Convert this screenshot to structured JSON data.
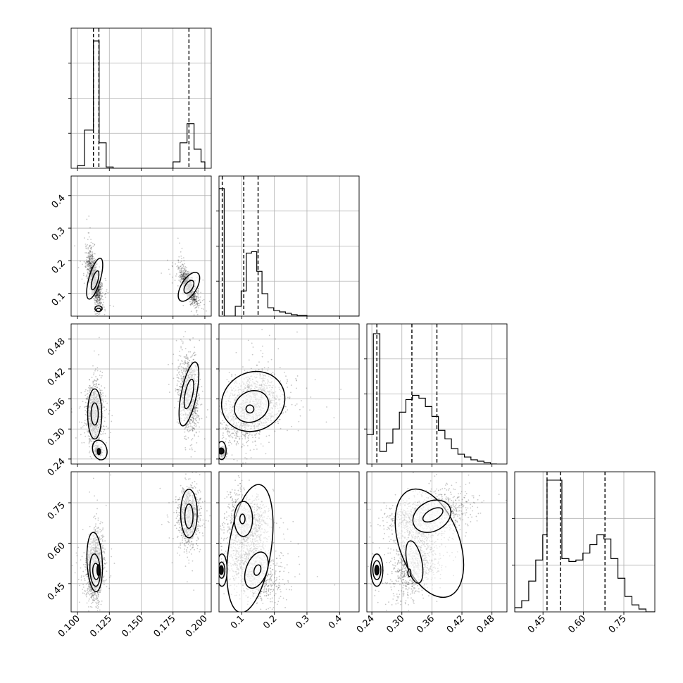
{
  "chart_data": {
    "type": "corner",
    "title": "",
    "grid": true,
    "quantile_lines": "dashed",
    "parameters": [
      {
        "range": [
          0.095,
          0.205
        ],
        "ticks": [
          0.1,
          0.125,
          0.15,
          0.175,
          0.2
        ],
        "tick_labels": [
          "0.100",
          "0.125",
          "0.150",
          "0.175",
          "0.200"
        ],
        "quantiles": [
          0.1125,
          0.1168,
          0.1875
        ],
        "hist_ymax": 1.1,
        "hist": {
          "edges": [
            0.1,
            0.1055,
            0.111,
            0.1125,
            0.117,
            0.1225,
            0.128,
            0.175,
            0.1805,
            0.186,
            0.1915,
            0.197,
            0.2
          ],
          "values": [
            0.02,
            0.3,
            0.3,
            1.0,
            0.2,
            0.01,
            0.0,
            0.05,
            0.2,
            0.35,
            0.15,
            0.05
          ]
        }
      },
      {
        "range": [
          0.03,
          0.46
        ],
        "ticks": [
          0.1,
          0.2,
          0.3,
          0.4
        ],
        "tick_labels": [
          "0.1",
          "0.2",
          "0.3",
          "0.4"
        ],
        "quantiles": [
          0.04,
          0.106,
          0.15
        ],
        "hist_ymax": 1.0,
        "hist": {
          "edges": [
            0.03,
            0.046,
            0.062,
            0.08,
            0.098,
            0.114,
            0.13,
            0.146,
            0.162,
            0.18,
            0.198,
            0.216,
            0.234,
            0.252,
            0.27,
            0.3,
            0.46
          ],
          "values": [
            0.91,
            0.0,
            0.0,
            0.07,
            0.18,
            0.45,
            0.46,
            0.32,
            0.16,
            0.06,
            0.04,
            0.03,
            0.02,
            0.01,
            0.005,
            0.0
          ]
        }
      },
      {
        "range": [
          0.23,
          0.51
        ],
        "ticks": [
          0.24,
          0.3,
          0.36,
          0.42,
          0.48
        ],
        "tick_labels": [
          "0.24",
          "0.30",
          "0.36",
          "0.42",
          "0.48"
        ],
        "quantiles": [
          0.25,
          0.32,
          0.37
        ],
        "hist_ymax": 1.0,
        "hist": {
          "edges": [
            0.23,
            0.243,
            0.256,
            0.269,
            0.282,
            0.295,
            0.308,
            0.321,
            0.334,
            0.347,
            0.36,
            0.373,
            0.386,
            0.399,
            0.412,
            0.425,
            0.438,
            0.451,
            0.464,
            0.477,
            0.49
          ],
          "values": [
            0.21,
            0.93,
            0.09,
            0.15,
            0.25,
            0.37,
            0.46,
            0.49,
            0.47,
            0.41,
            0.34,
            0.24,
            0.18,
            0.11,
            0.07,
            0.05,
            0.03,
            0.02,
            0.01,
            0.0
          ]
        }
      },
      {
        "range": [
          0.345,
          0.865
        ],
        "ticks": [
          0.45,
          0.6,
          0.75
        ],
        "tick_labels": [
          "0.45",
          "0.60",
          "0.75"
        ],
        "quantiles": [
          0.465,
          0.515,
          0.68
        ],
        "hist_ymax": 1.0,
        "hist": {
          "edges": [
            0.345,
            0.371,
            0.397,
            0.423,
            0.449,
            0.465,
            0.52,
            0.546,
            0.572,
            0.598,
            0.624,
            0.65,
            0.676,
            0.702,
            0.728,
            0.754,
            0.78,
            0.806,
            0.832,
            0.865
          ],
          "values": [
            0.03,
            0.08,
            0.22,
            0.37,
            0.55,
            0.94,
            0.38,
            0.36,
            0.37,
            0.42,
            0.48,
            0.55,
            0.52,
            0.38,
            0.24,
            0.11,
            0.05,
            0.02,
            0.0
          ]
        }
      }
    ],
    "scatter": [
      {
        "row": 1,
        "col": 0,
        "clusters": [
          {
            "cx": 0.1135,
            "cy": 0.14,
            "sx": 0.0028,
            "sy": 0.042,
            "rho": -0.72,
            "n": 1200
          },
          {
            "cx": 0.1875,
            "cy": 0.12,
            "sx": 0.0038,
            "sy": 0.03,
            "rho": -0.8,
            "n": 900
          }
        ],
        "contours": [
          {
            "cx": 0.1135,
            "cy": 0.145,
            "rx": 0.0045,
            "ry": 0.065,
            "tilt": -0.28,
            "filled": false
          },
          {
            "cx": 0.1138,
            "cy": 0.14,
            "rx": 0.0022,
            "ry": 0.03,
            "tilt": -0.28,
            "filled": false
          },
          {
            "cx": 0.1875,
            "cy": 0.12,
            "rx": 0.006,
            "ry": 0.05,
            "tilt": -0.55,
            "filled": false
          },
          {
            "cx": 0.1875,
            "cy": 0.12,
            "rx": 0.003,
            "ry": 0.022,
            "tilt": -0.55,
            "filled": false
          },
          {
            "cx": 0.1165,
            "cy": 0.053,
            "rx": 0.0028,
            "ry": 0.009,
            "tilt": 0,
            "filled": false
          },
          {
            "cx": 0.1165,
            "cy": 0.049,
            "rx": 0.0018,
            "ry": 0.005,
            "tilt": 0,
            "filled": false
          }
        ]
      },
      {
        "row": 2,
        "col": 0,
        "clusters": [
          {
            "cx": 0.1135,
            "cy": 0.33,
            "sx": 0.003,
            "sy": 0.028,
            "rho": 0.0,
            "n": 1100
          },
          {
            "cx": 0.1875,
            "cy": 0.37,
            "sx": 0.0038,
            "sy": 0.038,
            "rho": -0.2,
            "n": 1000
          },
          {
            "cx": 0.1165,
            "cy": 0.255,
            "sx": 0.0015,
            "sy": 0.004,
            "rho": 0.0,
            "n": 220
          }
        ],
        "contours": [
          {
            "cx": 0.1135,
            "cy": 0.33,
            "rx": 0.0055,
            "ry": 0.05,
            "tilt": 0,
            "filled": false
          },
          {
            "cx": 0.1135,
            "cy": 0.33,
            "rx": 0.0028,
            "ry": 0.022,
            "tilt": 0,
            "filled": false
          },
          {
            "cx": 0.1875,
            "cy": 0.37,
            "rx": 0.006,
            "ry": 0.065,
            "tilt": -0.2,
            "filled": false
          },
          {
            "cx": 0.1875,
            "cy": 0.37,
            "rx": 0.003,
            "ry": 0.03,
            "tilt": -0.2,
            "filled": false
          },
          {
            "cx": 0.1175,
            "cy": 0.258,
            "rx": 0.0055,
            "ry": 0.02,
            "tilt": 0.3,
            "filled": false
          },
          {
            "cx": 0.1168,
            "cy": 0.255,
            "rx": 0.0012,
            "ry": 0.006,
            "tilt": 0,
            "filled": true
          }
        ]
      },
      {
        "row": 2,
        "col": 1,
        "clusters": [
          {
            "cx": 0.13,
            "cy": 0.345,
            "sx": 0.045,
            "sy": 0.032,
            "rho": 0.35,
            "n": 1600
          },
          {
            "cx": 0.04,
            "cy": 0.255,
            "sx": 0.004,
            "sy": 0.004,
            "rho": 0.0,
            "n": 300
          }
        ],
        "contours": [
          {
            "cx": 0.135,
            "cy": 0.355,
            "rx": 0.1,
            "ry": 0.058,
            "tilt": 0.55,
            "filled": false
          },
          {
            "cx": 0.13,
            "cy": 0.345,
            "rx": 0.055,
            "ry": 0.03,
            "tilt": 0.55,
            "filled": false
          },
          {
            "cx": 0.125,
            "cy": 0.34,
            "rx": 0.012,
            "ry": 0.008,
            "tilt": 0.5,
            "filled": false
          },
          {
            "cx": 0.038,
            "cy": 0.257,
            "rx": 0.014,
            "ry": 0.018,
            "tilt": 0,
            "filled": false
          },
          {
            "cx": 0.037,
            "cy": 0.256,
            "rx": 0.008,
            "ry": 0.006,
            "tilt": 0,
            "filled": true
          }
        ]
      },
      {
        "row": 3,
        "col": 0,
        "clusters": [
          {
            "cx": 0.1135,
            "cy": 0.51,
            "sx": 0.003,
            "sy": 0.06,
            "rho": 0.1,
            "n": 1300
          },
          {
            "cx": 0.1875,
            "cy": 0.7,
            "sx": 0.004,
            "sy": 0.05,
            "rho": 0.0,
            "n": 1000
          }
        ],
        "contours": [
          {
            "cx": 0.1135,
            "cy": 0.53,
            "rx": 0.006,
            "ry": 0.11,
            "tilt": 0.05,
            "filled": false
          },
          {
            "cx": 0.1138,
            "cy": 0.5,
            "rx": 0.004,
            "ry": 0.06,
            "tilt": 0.05,
            "filled": false
          },
          {
            "cx": 0.1145,
            "cy": 0.495,
            "rx": 0.0025,
            "ry": 0.03,
            "tilt": 0.05,
            "filled": false
          },
          {
            "cx": 0.1165,
            "cy": 0.5,
            "rx": 0.0012,
            "ry": 0.02,
            "tilt": 0,
            "filled": true
          },
          {
            "cx": 0.1875,
            "cy": 0.71,
            "rx": 0.0065,
            "ry": 0.09,
            "tilt": 0,
            "filled": false
          },
          {
            "cx": 0.1875,
            "cy": 0.7,
            "rx": 0.0032,
            "ry": 0.045,
            "tilt": 0,
            "filled": false
          }
        ]
      },
      {
        "row": 3,
        "col": 1,
        "clusters": [
          {
            "cx": 0.115,
            "cy": 0.68,
            "sx": 0.03,
            "sy": 0.055,
            "rho": 0.0,
            "n": 900
          },
          {
            "cx": 0.14,
            "cy": 0.5,
            "sx": 0.04,
            "sy": 0.06,
            "rho": -0.4,
            "n": 1000
          },
          {
            "cx": 0.04,
            "cy": 0.5,
            "sx": 0.004,
            "sy": 0.012,
            "rho": 0.0,
            "n": 260
          }
        ],
        "contours": [
          {
            "cx": 0.125,
            "cy": 0.58,
            "rx": 0.065,
            "ry": 0.24,
            "tilt": -0.15,
            "filled": false
          },
          {
            "cx": 0.105,
            "cy": 0.69,
            "rx": 0.028,
            "ry": 0.065,
            "tilt": 0,
            "filled": false
          },
          {
            "cx": 0.145,
            "cy": 0.5,
            "rx": 0.032,
            "ry": 0.07,
            "tilt": -0.35,
            "filled": false
          },
          {
            "cx": 0.102,
            "cy": 0.69,
            "rx": 0.008,
            "ry": 0.018,
            "tilt": 0,
            "filled": false
          },
          {
            "cx": 0.148,
            "cy": 0.5,
            "rx": 0.01,
            "ry": 0.02,
            "tilt": -0.3,
            "filled": false
          },
          {
            "cx": 0.039,
            "cy": 0.5,
            "rx": 0.016,
            "ry": 0.06,
            "tilt": 0,
            "filled": false
          },
          {
            "cx": 0.038,
            "cy": 0.5,
            "rx": 0.01,
            "ry": 0.03,
            "tilt": 0,
            "filled": false
          },
          {
            "cx": 0.037,
            "cy": 0.5,
            "rx": 0.006,
            "ry": 0.016,
            "tilt": 0,
            "filled": true
          }
        ]
      },
      {
        "row": 3,
        "col": 2,
        "clusters": [
          {
            "cx": 0.35,
            "cy": 0.7,
            "sx": 0.04,
            "sy": 0.045,
            "rho": 0.4,
            "n": 1100
          },
          {
            "cx": 0.325,
            "cy": 0.52,
            "sx": 0.022,
            "sy": 0.06,
            "rho": 0.3,
            "n": 900
          },
          {
            "cx": 0.25,
            "cy": 0.5,
            "sx": 0.004,
            "sy": 0.01,
            "rho": 0.0,
            "n": 260
          }
        ],
        "contours": [
          {
            "cx": 0.355,
            "cy": 0.6,
            "rx": 0.06,
            "ry": 0.21,
            "tilt": 0.35,
            "filled": false
          },
          {
            "cx": 0.36,
            "cy": 0.7,
            "rx": 0.04,
            "ry": 0.055,
            "tilt": 0.5,
            "filled": false
          },
          {
            "cx": 0.325,
            "cy": 0.53,
            "rx": 0.015,
            "ry": 0.08,
            "tilt": 0.2,
            "filled": false
          },
          {
            "cx": 0.362,
            "cy": 0.705,
            "rx": 0.022,
            "ry": 0.02,
            "tilt": 0.5,
            "filled": false
          },
          {
            "cx": 0.315,
            "cy": 0.49,
            "rx": 0.003,
            "ry": 0.014,
            "tilt": 0,
            "filled": false
          },
          {
            "cx": 0.25,
            "cy": 0.5,
            "rx": 0.012,
            "ry": 0.06,
            "tilt": 0,
            "filled": false
          },
          {
            "cx": 0.25,
            "cy": 0.5,
            "rx": 0.008,
            "ry": 0.035,
            "tilt": 0,
            "filled": false
          },
          {
            "cx": 0.25,
            "cy": 0.5,
            "rx": 0.004,
            "ry": 0.018,
            "tilt": 0,
            "filled": true
          }
        ]
      }
    ]
  }
}
